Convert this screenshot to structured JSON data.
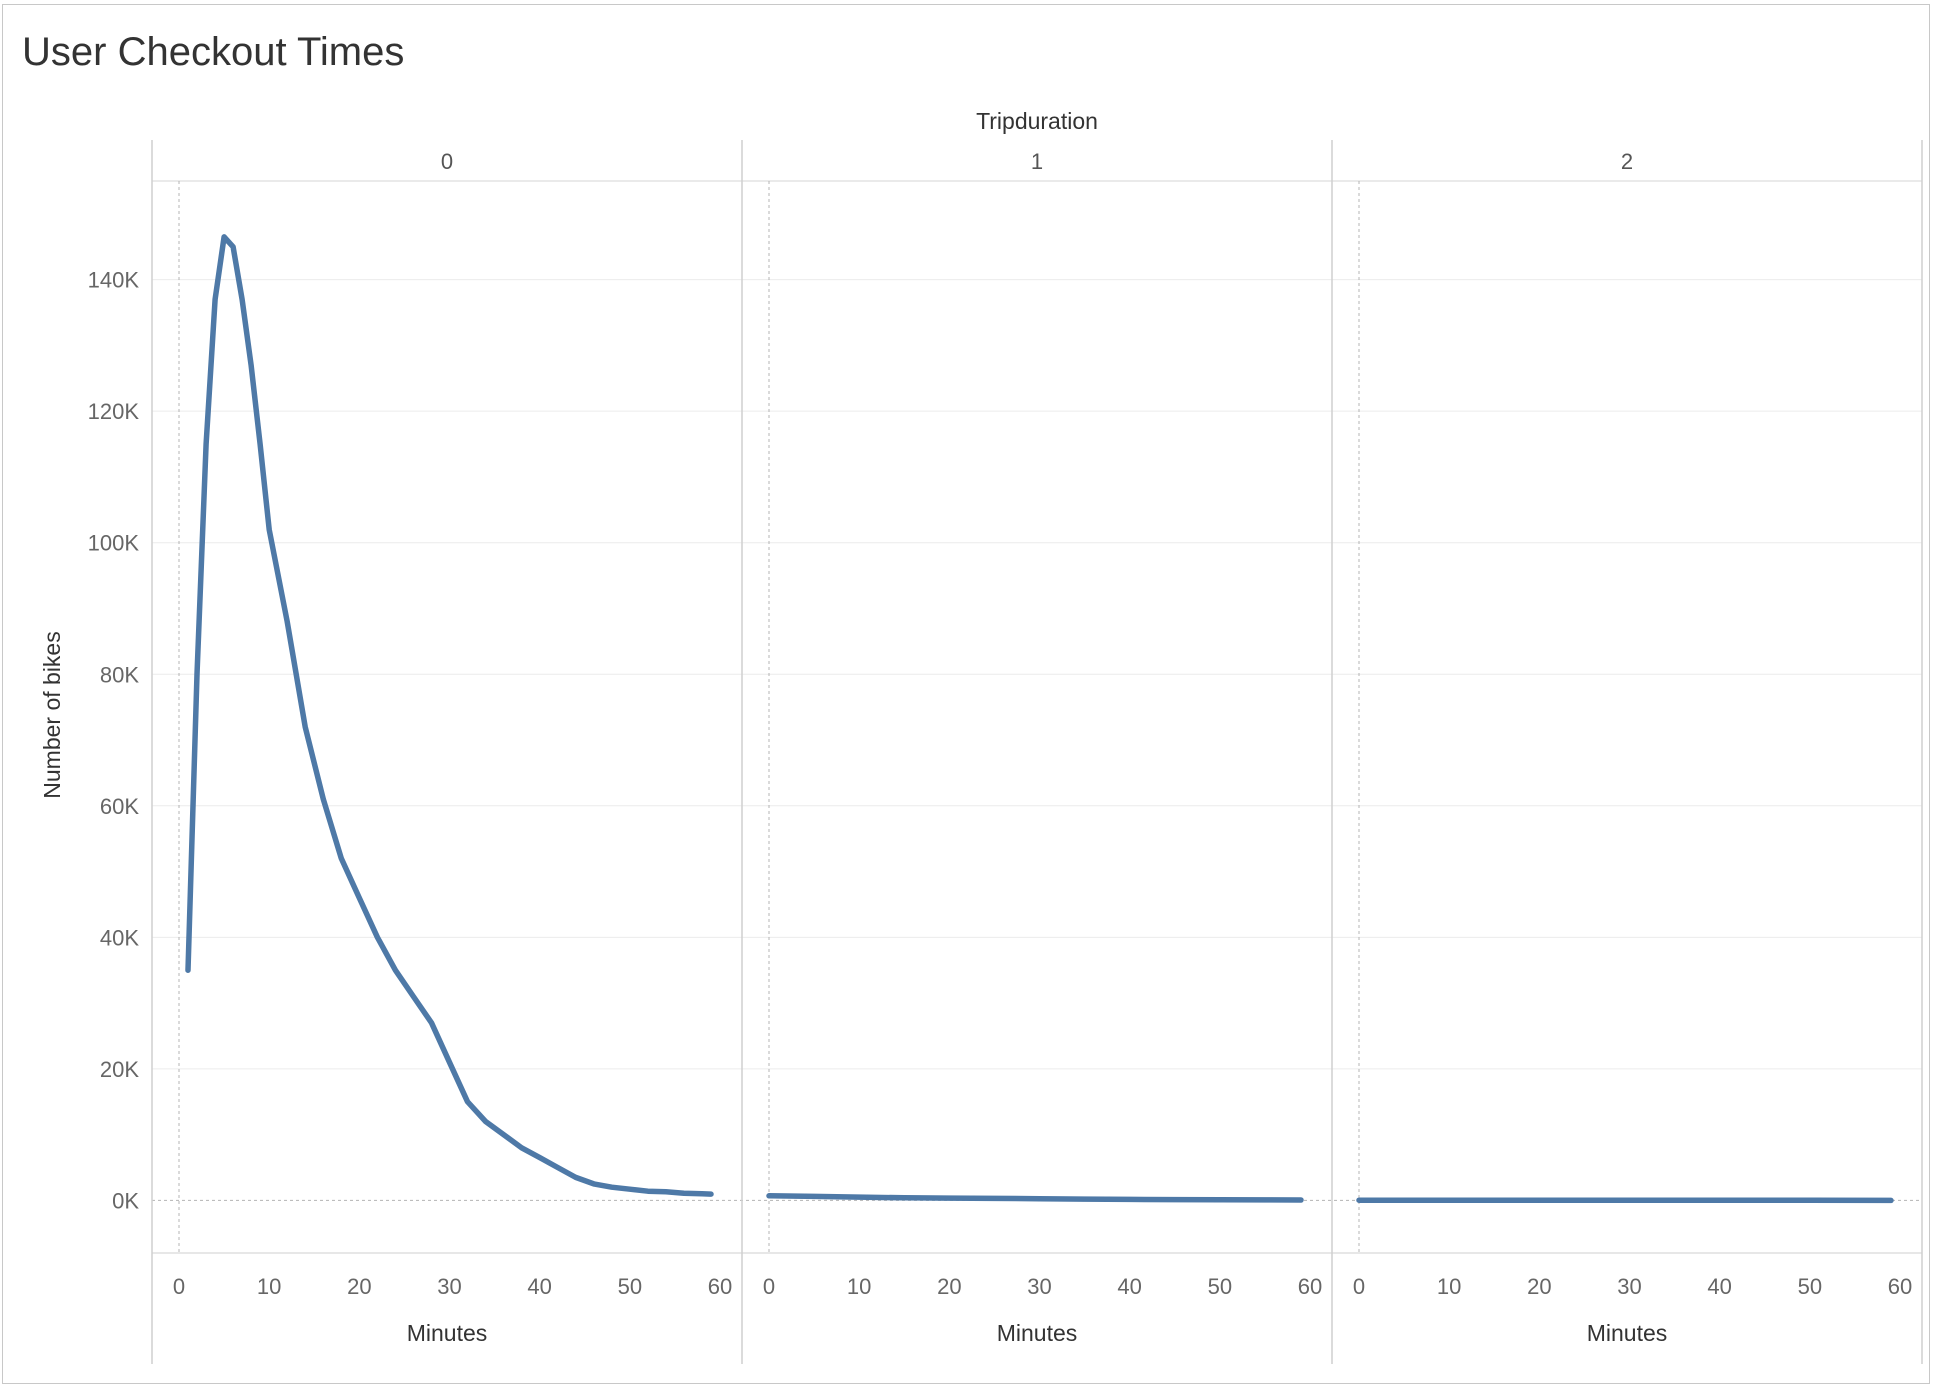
{
  "title": "User Checkout Times",
  "chart_data": {
    "type": "line",
    "title": "User Checkout Times",
    "column_header": "Tripduration",
    "panels": [
      "0",
      "1",
      "2"
    ],
    "xlabel": "Minutes",
    "ylabel": "Number of bikes",
    "xlim": [
      0,
      60
    ],
    "ylim": [
      -8000,
      155000
    ],
    "x_ticks": [
      0,
      10,
      20,
      30,
      40,
      50,
      60
    ],
    "y_ticks": [
      0,
      20000,
      40000,
      60000,
      80000,
      100000,
      120000,
      140000
    ],
    "y_tick_labels": [
      "0K",
      "20K",
      "40K",
      "60K",
      "80K",
      "100K",
      "120K",
      "140K"
    ],
    "grid": true,
    "line_color": "#4e79a7",
    "series": [
      {
        "panel": "0",
        "x": [
          1,
          2,
          3,
          4,
          5,
          6,
          7,
          8,
          9,
          10,
          12,
          14,
          16,
          18,
          20,
          22,
          24,
          26,
          28,
          30,
          32,
          34,
          36,
          38,
          40,
          42,
          44,
          46,
          48,
          50,
          52,
          54,
          56,
          58,
          59
        ],
        "y": [
          35000,
          80000,
          115000,
          137000,
          146500,
          145000,
          137000,
          127000,
          115000,
          102000,
          88000,
          72000,
          61000,
          52000,
          46000,
          40000,
          35000,
          31000,
          27000,
          21000,
          15000,
          12000,
          10000,
          8000,
          6500,
          5000,
          3500,
          2500,
          2000,
          1700,
          1400,
          1300,
          1100,
          1000,
          950
        ]
      },
      {
        "panel": "1",
        "x": [
          0,
          5,
          10,
          15,
          20,
          25,
          30,
          35,
          40,
          45,
          50,
          55,
          59
        ],
        "y": [
          700,
          600,
          500,
          400,
          350,
          300,
          250,
          200,
          150,
          120,
          100,
          80,
          60
        ]
      },
      {
        "panel": "2",
        "x": [
          0,
          10,
          20,
          30,
          40,
          50,
          59
        ],
        "y": [
          30,
          25,
          20,
          15,
          10,
          8,
          5
        ]
      }
    ]
  }
}
